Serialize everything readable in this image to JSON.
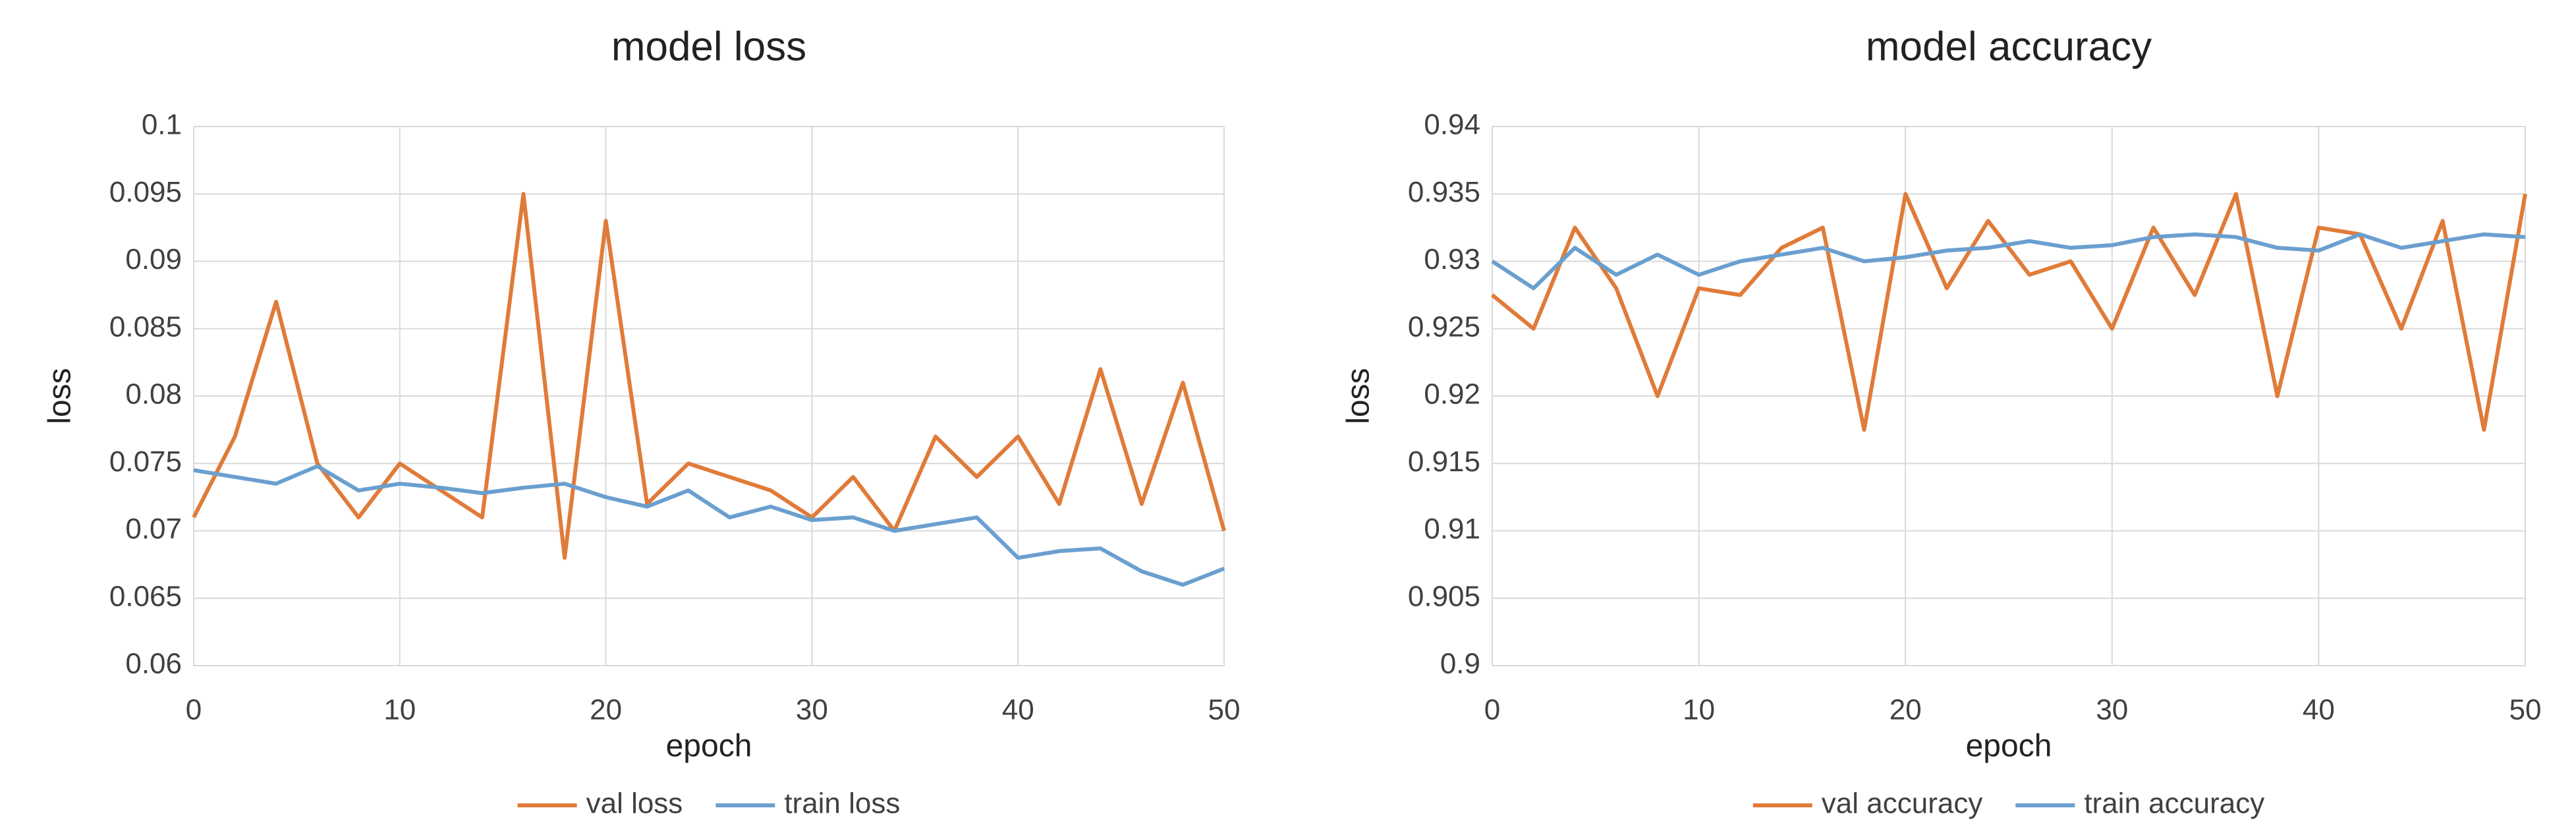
{
  "chart_data": [
    {
      "type": "line",
      "title": "model loss",
      "x_label": "epoch",
      "y_label": "loss",
      "x": [
        0,
        2,
        4,
        6,
        8,
        10,
        12,
        14,
        16,
        18,
        20,
        22,
        24,
        26,
        28,
        30,
        32,
        34,
        36,
        38,
        40,
        42,
        44,
        46,
        48,
        50
      ],
      "series": [
        {
          "name": "val loss",
          "color": "#e07b39",
          "values": [
            0.071,
            0.077,
            0.087,
            0.075,
            0.071,
            0.075,
            0.073,
            0.071,
            0.095,
            0.068,
            0.093,
            0.072,
            0.075,
            0.074,
            0.073,
            0.071,
            0.074,
            0.07,
            0.077,
            0.074,
            0.077,
            0.072,
            0.082,
            0.072,
            0.081,
            0.07
          ]
        },
        {
          "name": "train loss",
          "color": "#6a9fcf",
          "values": [
            0.0745,
            0.074,
            0.0735,
            0.0748,
            0.073,
            0.0735,
            0.0732,
            0.0728,
            0.0732,
            0.0735,
            0.0725,
            0.0718,
            0.073,
            0.071,
            0.0718,
            0.0708,
            0.071,
            0.07,
            0.0705,
            0.071,
            0.068,
            0.0685,
            0.0687,
            0.067,
            0.066,
            0.0672
          ]
        }
      ],
      "xlim": [
        0,
        50
      ],
      "xticks": [
        0,
        10,
        20,
        30,
        40,
        50
      ],
      "ylim": [
        0.06,
        0.1
      ],
      "yticks": [
        0.06,
        0.065,
        0.07,
        0.075,
        0.08,
        0.085,
        0.09,
        0.095,
        0.1
      ],
      "grid": true,
      "legend": "bottom"
    },
    {
      "type": "line",
      "title": "model accuracy",
      "x_label": "epoch",
      "y_label": "loss",
      "x": [
        0,
        2,
        4,
        6,
        8,
        10,
        12,
        14,
        16,
        18,
        20,
        22,
        24,
        26,
        28,
        30,
        32,
        34,
        36,
        38,
        40,
        42,
        44,
        46,
        48,
        50
      ],
      "series": [
        {
          "name": "val accuracy",
          "color": "#e07b39",
          "values": [
            0.9275,
            0.925,
            0.9325,
            0.928,
            0.92,
            0.928,
            0.9275,
            0.931,
            0.9325,
            0.9175,
            0.935,
            0.928,
            0.933,
            0.929,
            0.93,
            0.925,
            0.9325,
            0.9275,
            0.935,
            0.92,
            0.9325,
            0.932,
            0.925,
            0.933,
            0.9175,
            0.935
          ]
        },
        {
          "name": "train accuracy",
          "color": "#6a9fcf",
          "values": [
            0.93,
            0.928,
            0.931,
            0.929,
            0.9305,
            0.929,
            0.93,
            0.9305,
            0.931,
            0.93,
            0.9303,
            0.9308,
            0.931,
            0.9315,
            0.931,
            0.9312,
            0.9318,
            0.932,
            0.9318,
            0.931,
            0.9308,
            0.932,
            0.931,
            0.9315,
            0.932,
            0.9318
          ]
        }
      ],
      "xlim": [
        0,
        50
      ],
      "xticks": [
        0,
        10,
        20,
        30,
        40,
        50
      ],
      "ylim": [
        0.9,
        0.94
      ],
      "yticks": [
        0.9,
        0.905,
        0.91,
        0.915,
        0.92,
        0.925,
        0.93,
        0.935,
        0.94
      ],
      "grid": true,
      "legend": "bottom"
    }
  ]
}
